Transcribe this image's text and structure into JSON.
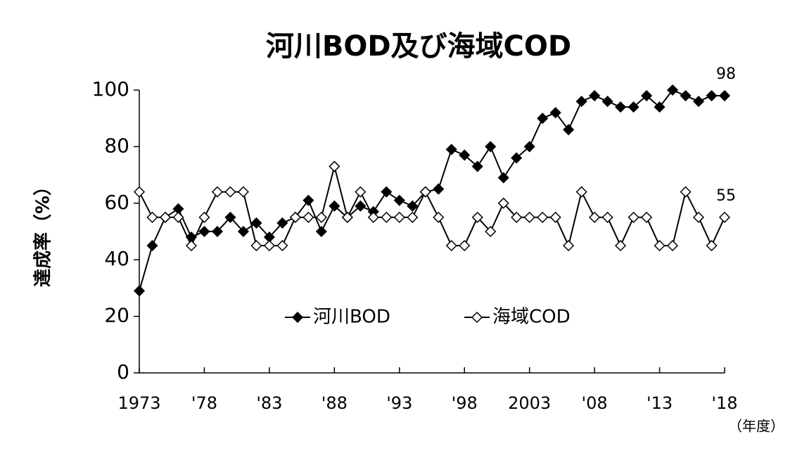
{
  "chart_data": {
    "type": "line",
    "title": "河川BOD及び海域COD",
    "y_label": "達成率（%）",
    "x_unit": "（年度）",
    "x": [
      1973,
      1974,
      1975,
      1976,
      1977,
      1978,
      1979,
      1980,
      1981,
      1982,
      1983,
      1984,
      1985,
      1986,
      1987,
      1988,
      1989,
      1990,
      1991,
      1992,
      1993,
      1994,
      1995,
      1996,
      1997,
      1998,
      1999,
      2000,
      2001,
      2002,
      2003,
      2004,
      2005,
      2006,
      2007,
      2008,
      2009,
      2010,
      2011,
      2012,
      2013,
      2014,
      2015,
      2016,
      2017,
      2018
    ],
    "series": [
      {
        "name": "河川BOD",
        "color": "#000000",
        "marker": "filled",
        "values": [
          29,
          45,
          55,
          58,
          48,
          50,
          50,
          55,
          50,
          53,
          48,
          53,
          55,
          61,
          50,
          59,
          55,
          59,
          57,
          64,
          61,
          59,
          64,
          65,
          79,
          77,
          73,
          80,
          69,
          76,
          80,
          90,
          92,
          86,
          96,
          98,
          96,
          94,
          94,
          98,
          94,
          100,
          98,
          96,
          98,
          98
        ]
      },
      {
        "name": "海域COD",
        "color": "#000000",
        "marker": "open",
        "values": [
          64,
          55,
          55,
          55,
          45,
          55,
          64,
          64,
          64,
          45,
          45,
          45,
          55,
          55,
          55,
          73,
          55,
          64,
          55,
          55,
          55,
          55,
          64,
          55,
          45,
          45,
          55,
          50,
          60,
          55,
          55,
          55,
          55,
          45,
          64,
          55,
          55,
          45,
          55,
          55,
          45,
          45,
          64,
          55,
          45,
          55
        ]
      }
    ],
    "xlim": [
      1973,
      2018
    ],
    "xticks": [
      1973,
      {
        "value": 1978,
        "label": "'78"
      },
      {
        "value": 1983,
        "label": "'83"
      },
      {
        "value": 1988,
        "label": "'88"
      },
      {
        "value": 1993,
        "label": "'93"
      },
      {
        "value": 1998,
        "label": "'98"
      },
      2003,
      {
        "value": 2008,
        "label": "'08"
      },
      {
        "value": 2013,
        "label": "'13"
      },
      {
        "value": 2018,
        "label": "'18"
      }
    ],
    "ylim": [
      0,
      100
    ],
    "yticks": [
      0,
      20,
      40,
      60,
      80,
      100
    ],
    "grid": false,
    "legend": "center"
  }
}
